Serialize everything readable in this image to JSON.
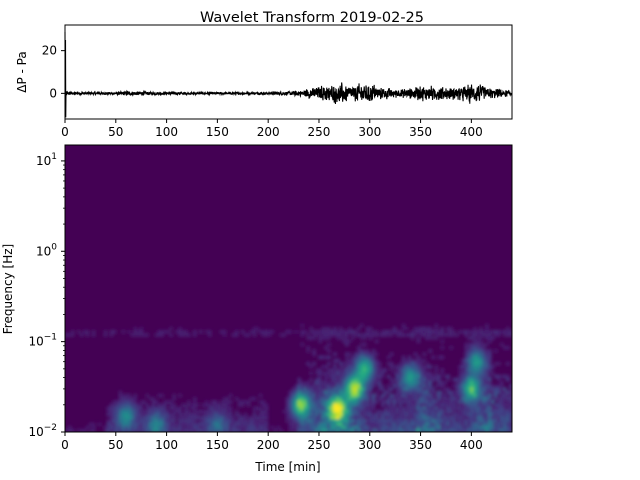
{
  "chart_data": [
    {
      "type": "line",
      "title": "Wavelet Transform 2019-02-25",
      "xlabel": "",
      "ylabel": "ΔP - Pa",
      "xlim": [
        0,
        440
      ],
      "ylim": [
        -12,
        32
      ],
      "x_ticks": [
        0,
        50,
        100,
        150,
        200,
        250,
        300,
        350,
        400
      ],
      "y_ticks": [
        0,
        20
      ],
      "line_color": "#000000",
      "envelope": {
        "x": [
          0,
          1,
          3,
          10,
          50,
          60,
          80,
          100,
          150,
          200,
          230,
          240,
          250,
          260,
          270,
          280,
          290,
          300,
          310,
          320,
          330,
          340,
          350,
          360,
          370,
          380,
          390,
          400,
          410,
          420,
          430,
          440
        ],
        "amplitude": [
          25,
          1.5,
          0.8,
          0.5,
          0.6,
          1.0,
          0.7,
          0.6,
          0.5,
          0.5,
          1.0,
          2.0,
          2.5,
          3.5,
          4.0,
          3.0,
          3.5,
          4.0,
          2.5,
          2.0,
          1.5,
          2.0,
          2.5,
          3.0,
          2.5,
          2.0,
          3.0,
          3.5,
          3.0,
          2.0,
          1.5,
          1.0
        ]
      },
      "grid": false
    },
    {
      "type": "heatmap",
      "title": "",
      "xlabel": "Time  [min]",
      "ylabel": "Frequency [Hz]",
      "xlim": [
        0,
        440
      ],
      "ylim": [
        0.01,
        15
      ],
      "y_scale": "log",
      "x_ticks": [
        0,
        50,
        100,
        150,
        200,
        250,
        300,
        350,
        400
      ],
      "y_ticks": [
        {
          "value": 0.01,
          "base": "10",
          "exp": "−2"
        },
        {
          "value": 0.1,
          "base": "10",
          "exp": "−1"
        },
        {
          "value": 1,
          "base": "10",
          "exp": "0"
        },
        {
          "value": 10,
          "base": "10",
          "exp": "1"
        }
      ],
      "colormap": "viridis",
      "background_color": "#440154",
      "hotspots": [
        {
          "x": 232,
          "f": 0.02,
          "intensity": 0.75
        },
        {
          "x": 268,
          "f": 0.018,
          "intensity": 0.9
        },
        {
          "x": 285,
          "f": 0.03,
          "intensity": 0.8
        },
        {
          "x": 295,
          "f": 0.05,
          "intensity": 0.6
        },
        {
          "x": 340,
          "f": 0.04,
          "intensity": 0.5
        },
        {
          "x": 400,
          "f": 0.03,
          "intensity": 0.6
        },
        {
          "x": 405,
          "f": 0.06,
          "intensity": 0.5
        },
        {
          "x": 60,
          "f": 0.015,
          "intensity": 0.4
        },
        {
          "x": 90,
          "f": 0.012,
          "intensity": 0.35
        },
        {
          "x": 150,
          "f": 0.012,
          "intensity": 0.25
        }
      ],
      "grid": false
    }
  ]
}
